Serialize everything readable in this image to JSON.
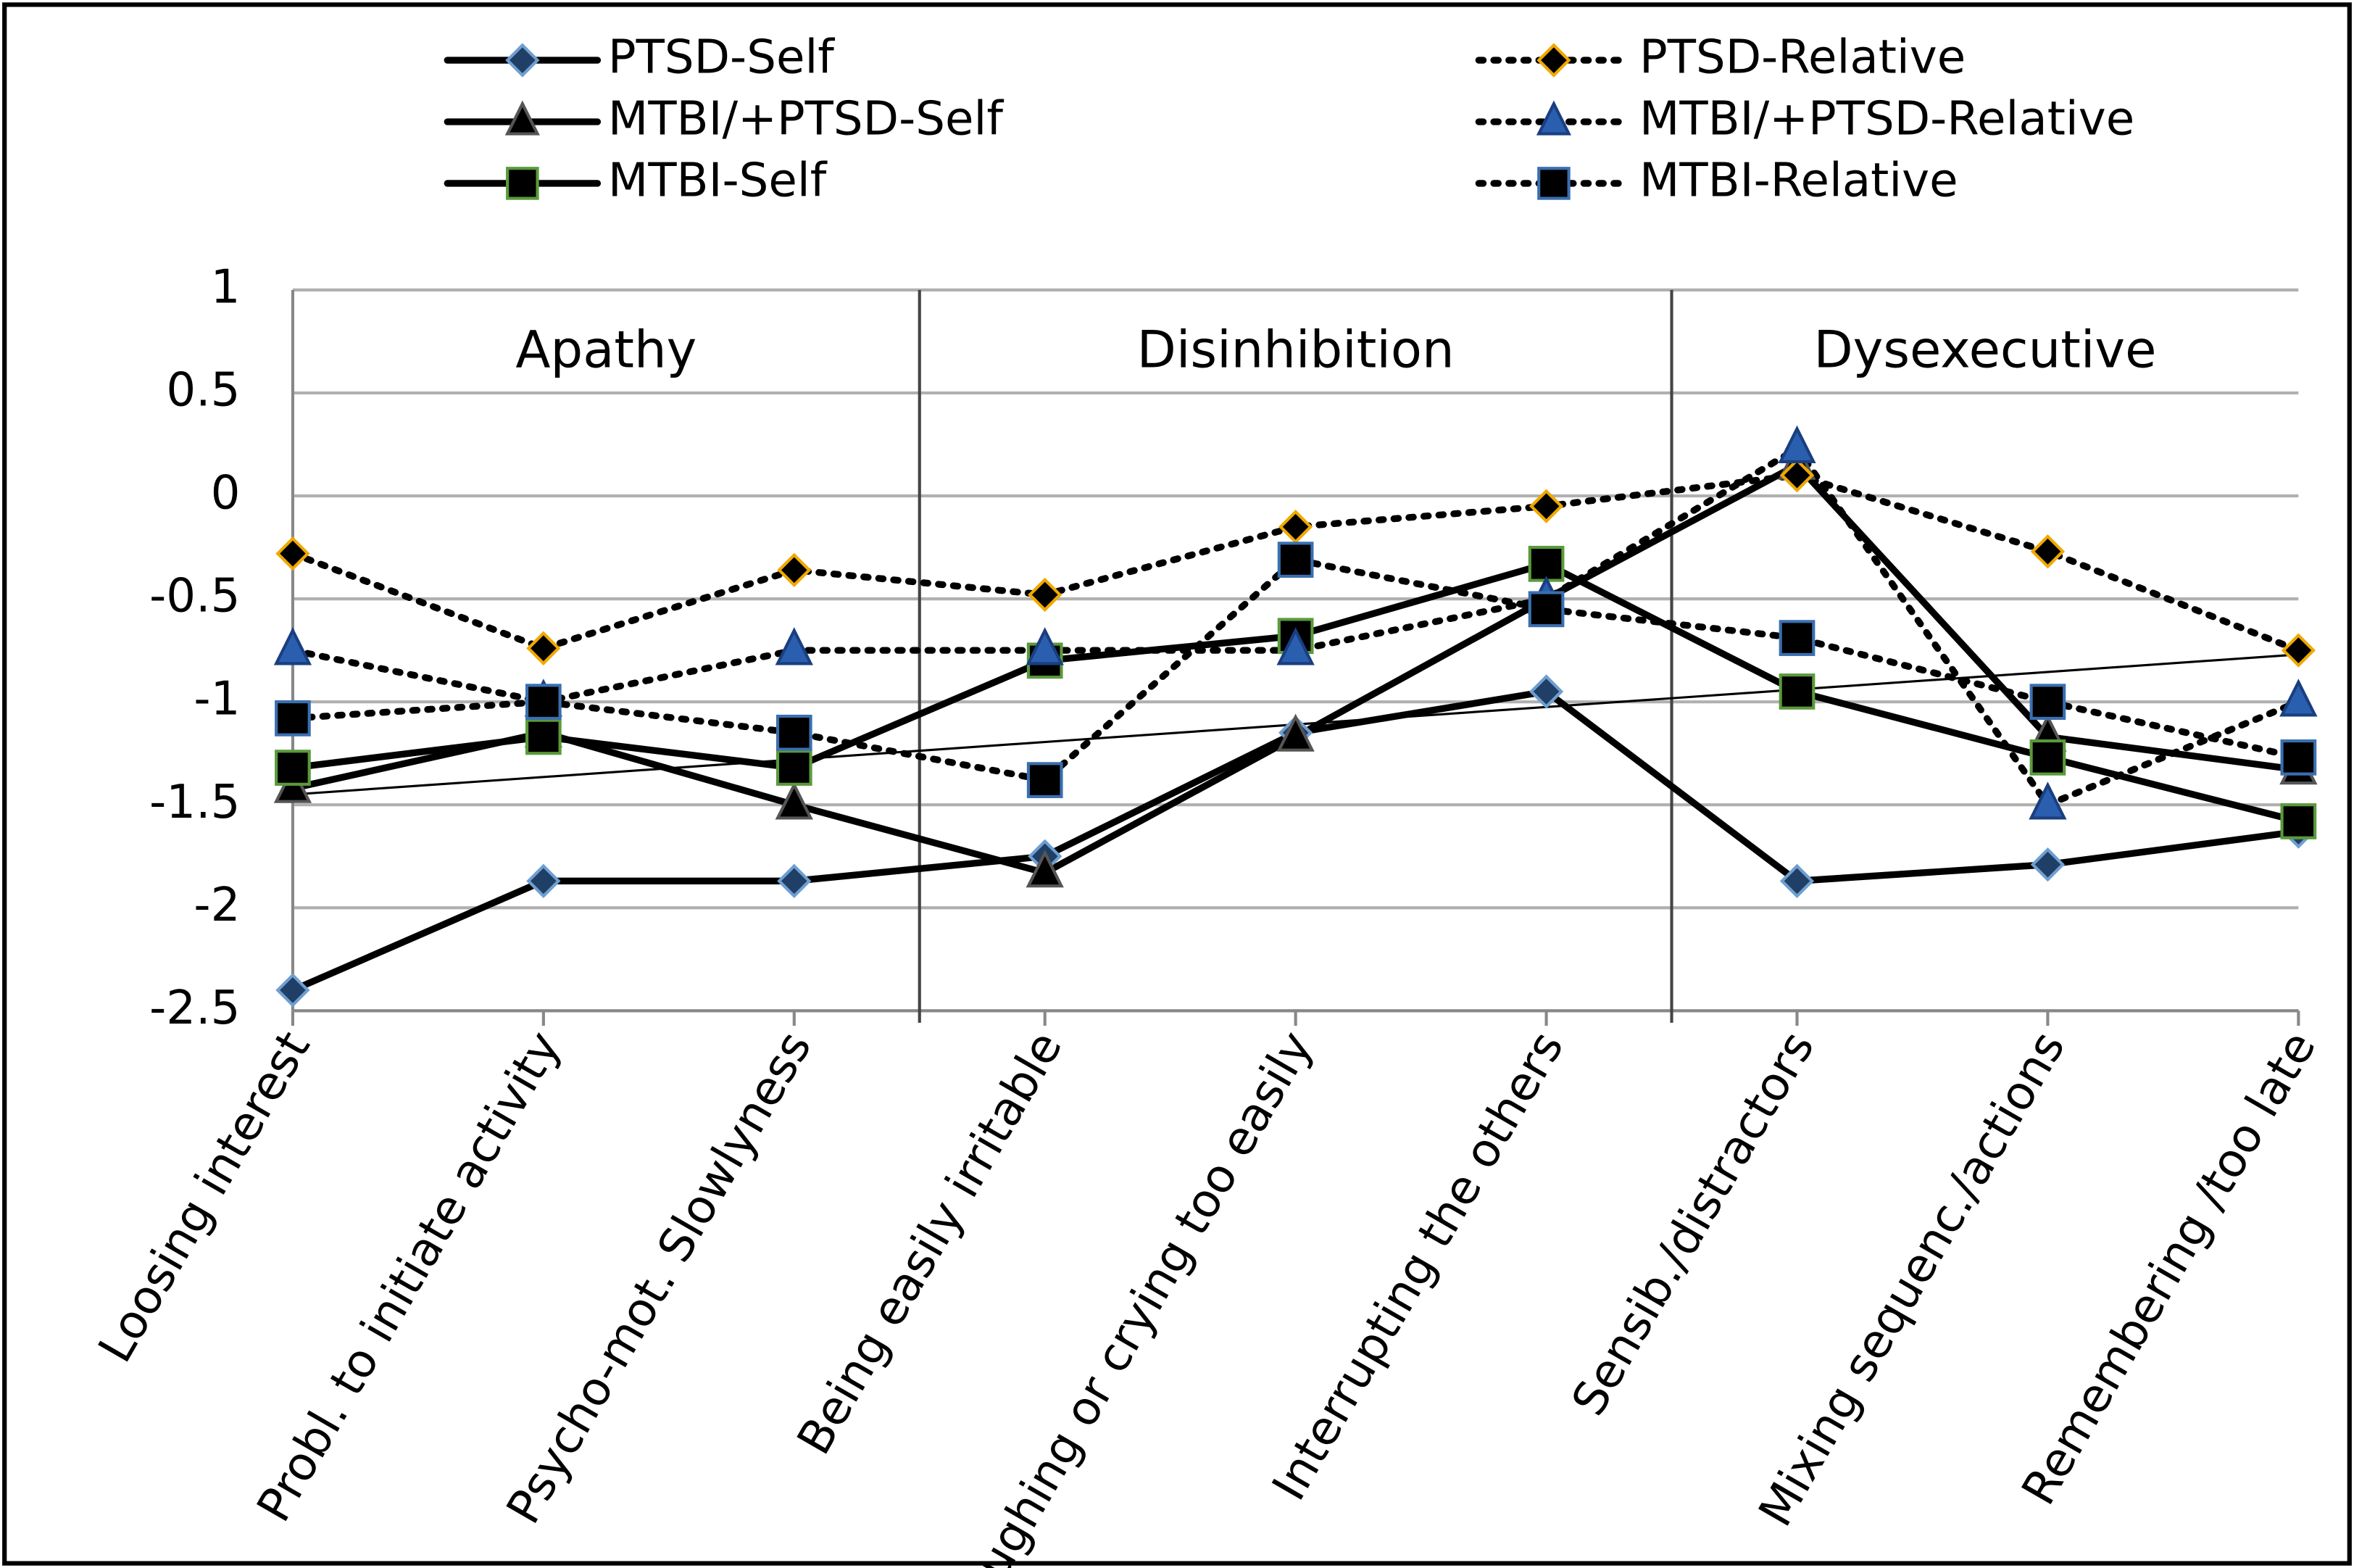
{
  "chart_data": {
    "type": "line",
    "categories": [
      "Loosing interest",
      "Probl. to initiate activity",
      "Psycho-mot. Slowlyness",
      "Being easily irritable",
      "Laughing or crying too easily",
      "Interrupting the others",
      "Sensib./distractors",
      "Mixing sequenc./actions",
      "Remembering /too late"
    ],
    "series": [
      {
        "name": "PTSD-Self",
        "color": "#000000",
        "dash": false,
        "marker": "diamond",
        "marker_fill": "#1f3f66",
        "marker_edge": "#6f9fd0",
        "values": [
          -2.4,
          -1.87,
          -1.87,
          -1.75,
          -1.15,
          -0.95,
          -1.87,
          -1.79,
          -1.63
        ]
      },
      {
        "name": "MTBI/+PTSD-Self",
        "color": "#000000",
        "dash": false,
        "marker": "triangle",
        "marker_fill": "#000000",
        "marker_edge": "#555555",
        "values": [
          -1.42,
          -1.15,
          -1.5,
          -1.83,
          -1.17,
          -0.5,
          0.15,
          -1.17,
          -1.33
        ]
      },
      {
        "name": "MTBI-Self",
        "color": "#000000",
        "dash": false,
        "marker": "square",
        "marker_fill": "#000000",
        "marker_edge": "#5a9a3a",
        "values": [
          -1.32,
          -1.17,
          -1.32,
          -0.8,
          -0.68,
          -0.33,
          -0.95,
          -1.27,
          -1.58
        ]
      },
      {
        "name": "PTSD-Relative",
        "color": "#000000",
        "dash": true,
        "marker": "diamond",
        "marker_fill": "#000000",
        "marker_edge": "#f0a800",
        "values": [
          -0.28,
          -0.74,
          -0.36,
          -0.48,
          -0.15,
          -0.05,
          0.1,
          -0.27,
          -0.75
        ]
      },
      {
        "name": "MTBI/+PTSD-Relative",
        "color": "#000000",
        "dash": true,
        "marker": "triangle",
        "marker_fill": "#2a5fb0",
        "marker_edge": "#1a3f80",
        "values": [
          -0.75,
          -1.0,
          -0.75,
          -0.75,
          -0.75,
          -0.5,
          0.23,
          -1.5,
          -1.0
        ]
      },
      {
        "name": "MTBI-Relative",
        "color": "#000000",
        "dash": true,
        "marker": "square",
        "marker_fill": "#000000",
        "marker_edge": "#3a6fb0",
        "values": [
          -1.08,
          -1.0,
          -1.15,
          -1.38,
          -0.31,
          -0.55,
          -0.69,
          -1.0,
          -1.27
        ]
      }
    ],
    "sections": [
      "Apathy",
      "Disinhibition",
      "Dysexecutive"
    ],
    "trendline": [
      -1.45,
      -0.77
    ],
    "ylim": [
      -2.5,
      1
    ],
    "yticks": [
      -2.5,
      -2,
      -1.5,
      -1,
      -0.5,
      0,
      0.5,
      1
    ],
    "grid": true
  }
}
